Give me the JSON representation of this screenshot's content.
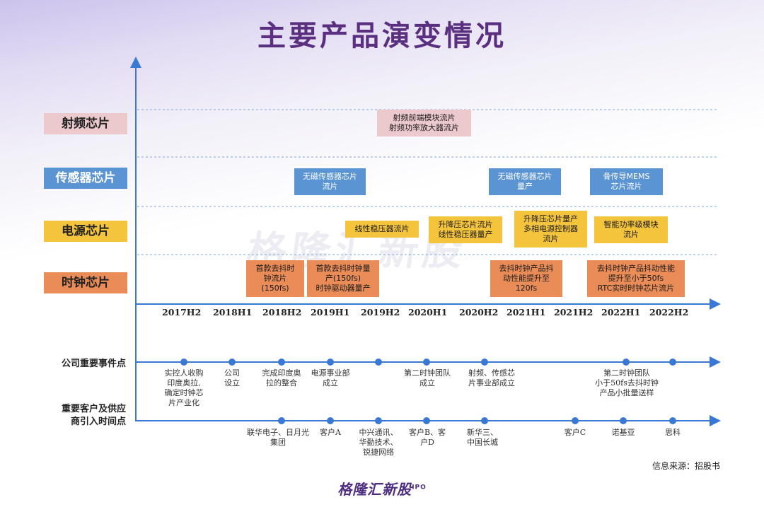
{
  "title": "主要产品演变情况",
  "categories": [
    {
      "label": "射频芯片",
      "color": "#ecc9cd"
    },
    {
      "label": "传感器芯片",
      "color": "#5b94d3"
    },
    {
      "label": "电源芯片",
      "color": "#f5c43d"
    },
    {
      "label": "时钟芯片",
      "color": "#e98c57"
    }
  ],
  "periods": [
    "2017H2",
    "2018H1",
    "2018H2",
    "2019H1",
    "2019H2",
    "2020H1",
    "2020H2",
    "2021H1",
    "2021H2",
    "2022H1",
    "2022H2"
  ],
  "milestones": {
    "rf_1": "射频前端模块流片\n射频功率放大器流片",
    "sensor_1": "无磁传感器芯片\n流片",
    "sensor_2": "无磁传感器芯片\n量产",
    "sensor_3": "骨传导MEMS\n芯片流片",
    "power_1": "线性稳压器流片",
    "power_2": "升降压芯片流片\n线性稳压器量产",
    "power_3": "升降压芯片量产\n多相电源控制器\n流片",
    "power_4": "智能功率级模块\n流片",
    "clock_1": "首款去抖时\n钟流片\n(150fs)",
    "clock_2": "首款去抖时钟量\n产(150fs)\n时钟驱动器量产",
    "clock_3": "去抖时钟产品抖\n动性能提升至\n120fs",
    "clock_4": "去抖时钟产品抖动性能\n提升至小于50fs\nRTC实时时钟芯片流片"
  },
  "events_row": {
    "label": "公司重要事件点",
    "items": [
      "实控人收购\n印度奥拉,\n确定时钟芯\n片产业化",
      "公司\n设立",
      "完成印度奥\n拉的整合",
      "电源事业部\n成立",
      "第二时钟团队\n成立",
      "射频、传感芯\n片事业部成立",
      "第二时钟团队\n小于50fs去抖时钟\n产品小批量送样"
    ]
  },
  "customers_row": {
    "label": "重要客户及供应\n商引入时间点",
    "items": [
      "联华电子、日月光\n集团",
      "客户A",
      "中兴通讯、\n华勤技术、\n锐捷网络",
      "客户B、客\n户D",
      "新华三、\n中国长城",
      "客户C",
      "诺基亚",
      "思科"
    ]
  },
  "source": "信息来源：招股书",
  "watermark": "格隆汇新股",
  "logo": "格隆汇新股",
  "logo_sup": "IPO"
}
